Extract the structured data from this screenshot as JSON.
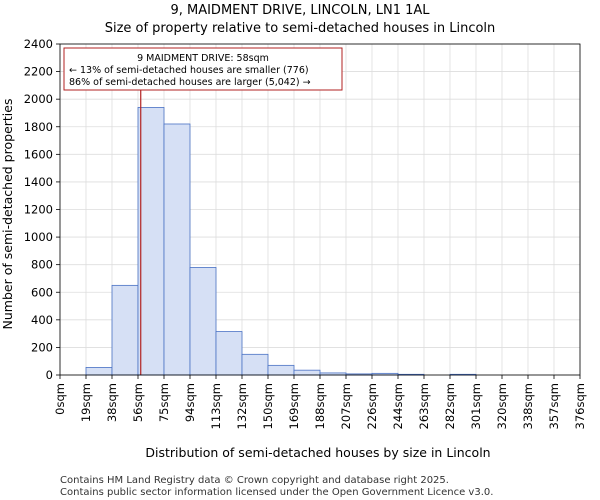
{
  "titles": {
    "line1": "9, MAIDMENT DRIVE, LINCOLN, LN1 1AL",
    "line2": "Size of property relative to semi-detached houses in Lincoln"
  },
  "annotation": {
    "line1": "9 MAIDMENT DRIVE: 58sqm",
    "line2": "← 13% of semi-detached houses are smaller (776)",
    "line3": "86% of semi-detached houses are larger (5,042) →"
  },
  "footer": {
    "line1": "Contains HM Land Registry data © Crown copyright and database right 2025.",
    "line2": "Contains public sector information licensed under the Open Government Licence v3.0."
  },
  "colors": {
    "bar_fill": "#d6e0f5",
    "bar_edge": "#4a72c4",
    "marker": "#b22222",
    "grid": "#dddddd"
  },
  "chart_data": {
    "type": "bar",
    "title": "Size of property relative to semi-detached houses in Lincoln",
    "xlabel": "Distribution of semi-detached houses by size in Lincoln",
    "ylabel": "Number of semi-detached properties",
    "ylim": [
      0,
      2400
    ],
    "yticks": [
      0,
      200,
      400,
      600,
      800,
      1000,
      1200,
      1400,
      1600,
      1800,
      2000,
      2200,
      2400
    ],
    "bin_edges": [
      0,
      19,
      38,
      56,
      75,
      94,
      113,
      132,
      150,
      169,
      188,
      207,
      226,
      244,
      263,
      282,
      301,
      320,
      338,
      357,
      376
    ],
    "tick_labels": [
      "0sqm",
      "19sqm",
      "38sqm",
      "56sqm",
      "75sqm",
      "94sqm",
      "113sqm",
      "132sqm",
      "150sqm",
      "169sqm",
      "188sqm",
      "207sqm",
      "226sqm",
      "244sqm",
      "263sqm",
      "282sqm",
      "301sqm",
      "320sqm",
      "338sqm",
      "357sqm",
      "376sqm"
    ],
    "values": [
      0,
      55,
      650,
      1940,
      1820,
      780,
      315,
      150,
      70,
      35,
      15,
      8,
      12,
      5,
      0,
      5,
      0,
      0,
      0,
      0
    ],
    "marker_value": 58,
    "grid": true
  }
}
